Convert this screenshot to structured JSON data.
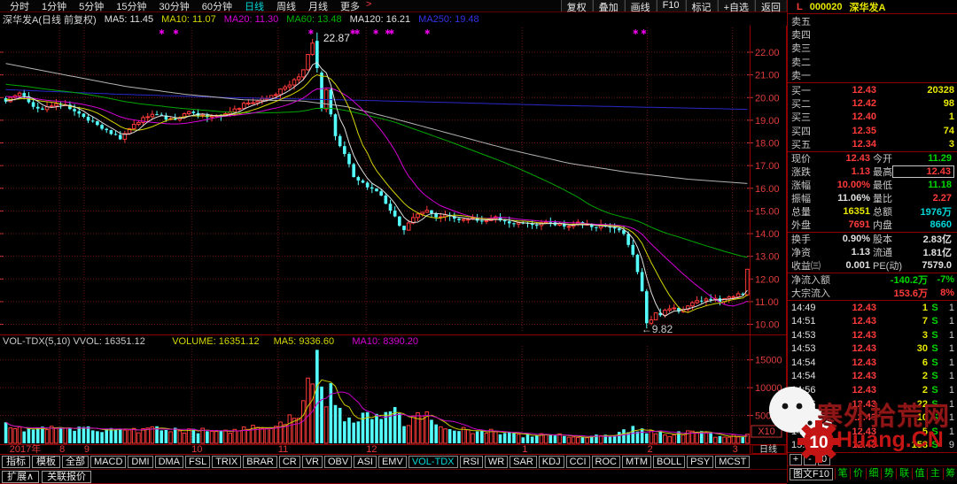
{
  "stock": {
    "flag": "L",
    "code": "000020",
    "name": "深华发A"
  },
  "topbar": {
    "periods": [
      {
        "label": "分时",
        "active": false
      },
      {
        "label": "1分钟",
        "active": false
      },
      {
        "label": "5分钟",
        "active": false
      },
      {
        "label": "15分钟",
        "active": false
      },
      {
        "label": "30分钟",
        "active": false
      },
      {
        "label": "60分钟",
        "active": false
      },
      {
        "label": "日线",
        "active": true
      },
      {
        "label": "周线",
        "active": false
      },
      {
        "label": "月线",
        "active": false
      },
      {
        "label": "更多",
        "active": false
      }
    ],
    "more_arrow": ">",
    "buttons": [
      "复权",
      "叠加",
      "画线",
      "F10",
      "标记",
      "+自选",
      "返回"
    ]
  },
  "title_line": {
    "name": "深华发A(日线 前复权)",
    "mas": [
      {
        "label": "MA5: 11.45",
        "color": "#e0e0e0"
      },
      {
        "label": "MA10: 11.07",
        "color": "#d6d600"
      },
      {
        "label": "MA20: 11.30",
        "color": "#d600d6"
      },
      {
        "label": "MA60: 13.48",
        "color": "#00b400"
      },
      {
        "label": "MA120: 16.21",
        "color": "#e0e0e0"
      },
      {
        "label": "MA250: 19.48",
        "color": "#3232e6"
      }
    ]
  },
  "chart": {
    "y_ticks": [
      "22.00",
      "21.00",
      "20.00",
      "19.00",
      "18.00",
      "17.00",
      "16.00",
      "15.00",
      "14.00",
      "13.00",
      "12.00",
      "11.00",
      "10.00"
    ],
    "vol_ticks": [
      "15000",
      "10000",
      "5000"
    ],
    "vol_scale": "X10",
    "period_box": "日线",
    "date_labels": [
      {
        "t": "2017年",
        "x": 0.008
      },
      {
        "t": "8",
        "x": 0.075
      },
      {
        "t": "9",
        "x": 0.108
      },
      {
        "t": "10",
        "x": 0.252
      },
      {
        "t": "11",
        "x": 0.368
      },
      {
        "t": "12",
        "x": 0.486
      },
      {
        "t": "1",
        "x": 0.695
      },
      {
        "t": "2",
        "x": 0.863
      },
      {
        "t": "3",
        "x": 0.977
      }
    ],
    "vol_header": [
      {
        "t": "VOL-TDX(5,10) VVOL: 16351.12",
        "c": "#c8c8c8"
      },
      {
        "t": "VOLUME: 16351.12",
        "c": "#d6d600"
      },
      {
        "t": "MA5: 9336.60",
        "c": "#d6d600"
      },
      {
        "t": "MA10: 8390.20",
        "c": "#d600d6"
      }
    ],
    "annotations": {
      "peak": "22.87",
      "low": "←9.82"
    }
  },
  "chart_data": {
    "type": "candlestick+volume",
    "title": "深华发A 000020 daily, 2017-07 to 2018-03",
    "ylim": [
      9.6,
      23.2
    ],
    "vol_axis_max": 17500,
    "vol_scale_note": "X10",
    "n_candles": 163,
    "key_points": {
      "high": 22.87,
      "low": 9.82,
      "last_close": 12.43,
      "last_open": 11.3,
      "last_volume": 1635,
      "high_xfrac": 0.419,
      "low_xfrac": 0.867
    },
    "price_anchors": [
      [
        0,
        19.9
      ],
      [
        0.02,
        20.2
      ],
      [
        0.045,
        19.4
      ],
      [
        0.07,
        19.8
      ],
      [
        0.1,
        19.3
      ],
      [
        0.13,
        18.6
      ],
      [
        0.155,
        18.2
      ],
      [
        0.175,
        18.9
      ],
      [
        0.2,
        19.25
      ],
      [
        0.225,
        19.0
      ],
      [
        0.25,
        19.35
      ],
      [
        0.28,
        19.1
      ],
      [
        0.3,
        19.4
      ],
      [
        0.33,
        19.8
      ],
      [
        0.36,
        20.1
      ],
      [
        0.385,
        20.6
      ],
      [
        0.4,
        21.1
      ],
      [
        0.412,
        22.3
      ],
      [
        0.419,
        22.3
      ],
      [
        0.428,
        21.0
      ],
      [
        0.437,
        19.4
      ],
      [
        0.447,
        18.0
      ],
      [
        0.458,
        17.4
      ],
      [
        0.468,
        16.6
      ],
      [
        0.478,
        16.3
      ],
      [
        0.49,
        16.0
      ],
      [
        0.505,
        15.7
      ],
      [
        0.518,
        15.1
      ],
      [
        0.534,
        14.1
      ],
      [
        0.548,
        14.6
      ],
      [
        0.563,
        15.05
      ],
      [
        0.578,
        14.75
      ],
      [
        0.595,
        14.9
      ],
      [
        0.61,
        14.55
      ],
      [
        0.625,
        14.7
      ],
      [
        0.64,
        14.5
      ],
      [
        0.655,
        14.75
      ],
      [
        0.67,
        14.6
      ],
      [
        0.69,
        14.45
      ],
      [
        0.71,
        14.35
      ],
      [
        0.73,
        14.5
      ],
      [
        0.75,
        14.35
      ],
      [
        0.77,
        14.45
      ],
      [
        0.79,
        14.3
      ],
      [
        0.81,
        14.35
      ],
      [
        0.83,
        14.15
      ],
      [
        0.842,
        13.4
      ],
      [
        0.852,
        12.3
      ],
      [
        0.86,
        11.1
      ],
      [
        0.867,
        10.0
      ],
      [
        0.874,
        10.55
      ],
      [
        0.882,
        10.35
      ],
      [
        0.89,
        10.6
      ],
      [
        0.9,
        10.75
      ],
      [
        0.912,
        10.55
      ],
      [
        0.925,
        10.9
      ],
      [
        0.938,
        11.05
      ],
      [
        0.95,
        11.15
      ],
      [
        0.962,
        11.05
      ],
      [
        0.974,
        11.25
      ],
      [
        0.985,
        11.3
      ],
      [
        0.994,
        11.3
      ],
      [
        1,
        12.43
      ]
    ],
    "vol_anchors": [
      [
        0,
        3200
      ],
      [
        0.05,
        2400
      ],
      [
        0.09,
        2900
      ],
      [
        0.13,
        2300
      ],
      [
        0.17,
        2100
      ],
      [
        0.21,
        2500
      ],
      [
        0.25,
        2300
      ],
      [
        0.29,
        2100
      ],
      [
        0.33,
        2500
      ],
      [
        0.37,
        3200
      ],
      [
        0.4,
        5200
      ],
      [
        0.417,
        16800
      ],
      [
        0.428,
        8200
      ],
      [
        0.44,
        9600
      ],
      [
        0.452,
        5200
      ],
      [
        0.465,
        4000
      ],
      [
        0.478,
        4600
      ],
      [
        0.49,
        5800
      ],
      [
        0.502,
        4200
      ],
      [
        0.515,
        6600
      ],
      [
        0.528,
        5000
      ],
      [
        0.545,
        3600
      ],
      [
        0.562,
        5400
      ],
      [
        0.578,
        3300
      ],
      [
        0.595,
        2700
      ],
      [
        0.615,
        2300
      ],
      [
        0.635,
        2000
      ],
      [
        0.655,
        2300
      ],
      [
        0.675,
        1700
      ],
      [
        0.7,
        1400
      ],
      [
        0.725,
        1800
      ],
      [
        0.75,
        1300
      ],
      [
        0.775,
        1200
      ],
      [
        0.8,
        1400
      ],
      [
        0.825,
        1600
      ],
      [
        0.845,
        2700
      ],
      [
        0.862,
        2400
      ],
      [
        0.878,
        1900
      ],
      [
        0.895,
        1500
      ],
      [
        0.915,
        1900
      ],
      [
        0.935,
        2300
      ],
      [
        0.955,
        1500
      ],
      [
        0.975,
        1300
      ],
      [
        0.99,
        1100
      ],
      [
        1,
        1635
      ]
    ],
    "ma120_path": [
      [
        0,
        21.5
      ],
      [
        0.08,
        21.0
      ],
      [
        0.16,
        20.5
      ],
      [
        0.24,
        20.15
      ],
      [
        0.32,
        19.9
      ],
      [
        0.4,
        19.85
      ],
      [
        0.46,
        19.6
      ],
      [
        0.52,
        19.1
      ],
      [
        0.6,
        18.4
      ],
      [
        0.68,
        17.7
      ],
      [
        0.76,
        17.1
      ],
      [
        0.84,
        16.7
      ],
      [
        0.92,
        16.4
      ],
      [
        1,
        16.21
      ]
    ],
    "ma250_path": [
      [
        0,
        20.35
      ],
      [
        0.15,
        20.15
      ],
      [
        0.3,
        20.0
      ],
      [
        0.45,
        19.9
      ],
      [
        0.6,
        19.78
      ],
      [
        0.75,
        19.65
      ],
      [
        0.9,
        19.55
      ],
      [
        1,
        19.48
      ]
    ],
    "star_marks_x": [
      0.212,
      0.231,
      0.412,
      0.468,
      0.474,
      0.499,
      0.515,
      0.52,
      0.568,
      0.847,
      0.858
    ],
    "colors": {
      "up": "#ff3a3a",
      "down": "#54ffff",
      "ma5": "#e0e0e0",
      "ma10": "#d6d600",
      "ma20": "#d600d6",
      "ma60": "#00a800",
      "ma120": "#b4b4b4",
      "ma250": "#2828c8",
      "grid": "#6e1414",
      "axis_text": "#e03c3c"
    }
  },
  "order_book": {
    "sells": [
      {
        "label": "卖五",
        "price": "",
        "vol": ""
      },
      {
        "label": "卖四",
        "price": "",
        "vol": ""
      },
      {
        "label": "卖三",
        "price": "",
        "vol": ""
      },
      {
        "label": "卖二",
        "price": "",
        "vol": ""
      },
      {
        "label": "卖一",
        "price": "",
        "vol": ""
      }
    ],
    "buys": [
      {
        "label": "买一",
        "price": "12.43",
        "vol": "20328"
      },
      {
        "label": "买二",
        "price": "12.42",
        "vol": "98"
      },
      {
        "label": "买三",
        "price": "12.40",
        "vol": "1"
      },
      {
        "label": "买四",
        "price": "12.35",
        "vol": "74"
      },
      {
        "label": "买五",
        "price": "12.34",
        "vol": "3"
      }
    ]
  },
  "stats_rows": [
    {
      "div": false,
      "cells": [
        {
          "l": "现价",
          "v": "12.43",
          "c": "c-r",
          "box": false
        },
        {
          "l": "今开",
          "v": "11.29",
          "c": "c-g",
          "box": false
        }
      ]
    },
    {
      "div": false,
      "cells": [
        {
          "l": "涨跌",
          "v": "1.13",
          "c": "c-r",
          "box": false
        },
        {
          "l": "最高",
          "v": "12.43",
          "c": "c-r",
          "box": true
        }
      ]
    },
    {
      "div": false,
      "cells": [
        {
          "l": "涨幅",
          "v": "10.00%",
          "c": "c-r",
          "box": false
        },
        {
          "l": "最低",
          "v": "11.18",
          "c": "c-g",
          "box": false
        }
      ]
    },
    {
      "div": false,
      "cells": [
        {
          "l": "振幅",
          "v": "11.06%",
          "c": "c-w",
          "box": false
        },
        {
          "l": "量比",
          "v": "2.27",
          "c": "c-r",
          "box": false
        }
      ]
    },
    {
      "div": false,
      "cells": [
        {
          "l": "总量",
          "v": "16351",
          "c": "c-y",
          "box": false
        },
        {
          "l": "总额",
          "v": "1976万",
          "c": "c-c",
          "box": false
        }
      ]
    },
    {
      "div": false,
      "cells": [
        {
          "l": "外盘",
          "v": "7691",
          "c": "c-r",
          "box": false
        },
        {
          "l": "内盘",
          "v": "8660",
          "c": "c-c",
          "box": false
        }
      ]
    },
    {
      "div": true,
      "cells": [
        {
          "l": "换手",
          "v": "0.90%",
          "c": "c-w",
          "box": false
        },
        {
          "l": "股本",
          "v": "2.83亿",
          "c": "c-w",
          "box": false
        }
      ]
    },
    {
      "div": false,
      "cells": [
        {
          "l": "净资",
          "v": "1.13",
          "c": "c-w",
          "box": false
        },
        {
          "l": "流通",
          "v": "1.81亿",
          "c": "c-w",
          "box": false
        }
      ]
    },
    {
      "div": false,
      "cells": [
        {
          "l": "收益㈢",
          "v": "0.001",
          "c": "c-w",
          "box": false
        },
        {
          "l": "PE(动)",
          "v": "7579.0",
          "c": "c-w",
          "box": false
        }
      ]
    }
  ],
  "flows": [
    {
      "label": "净流入额",
      "value": "-140.2万",
      "pct": "-7%",
      "c": "c-g"
    },
    {
      "label": "大宗流入",
      "value": "153.6万",
      "pct": "8%",
      "c": "c-r"
    }
  ],
  "tick_list": [
    {
      "time": "14:49",
      "price": "12.43",
      "vol": "1",
      "type": "S",
      "n": "1"
    },
    {
      "time": "14:51",
      "price": "12.43",
      "vol": "7",
      "type": "S",
      "n": "1"
    },
    {
      "time": "14:53",
      "price": "12.43",
      "vol": "3",
      "type": "S",
      "n": "1"
    },
    {
      "time": "14:53",
      "price": "12.43",
      "vol": "30",
      "type": "S",
      "n": "1"
    },
    {
      "time": "14:54",
      "price": "12.43",
      "vol": "6",
      "type": "S",
      "n": "1"
    },
    {
      "time": "14:54",
      "price": "12.43",
      "vol": "2",
      "type": "S",
      "n": "1"
    },
    {
      "time": "14:56",
      "price": "12.43",
      "vol": "2",
      "type": "S",
      "n": "1"
    },
    {
      "time": "14:56",
      "price": "12.43",
      "vol": "22",
      "type": "S",
      "n": "1"
    },
    {
      "time": "14:56",
      "price": "12.43",
      "vol": "10",
      "type": "S",
      "n": "1"
    },
    {
      "time": "14:57",
      "price": "12.43",
      "vol": "5",
      "type": "S",
      "n": "1"
    },
    {
      "time": "15:00",
      "price": "12.43",
      "vol": "158",
      "type": "S",
      "n": "9"
    }
  ],
  "bottom": {
    "indicator_tabs": [
      "指标",
      "模板"
    ],
    "indicators": [
      "全部",
      "MACD",
      "DMI",
      "DMA",
      "FSL",
      "TRIX",
      "BRAR",
      "CR",
      "VR",
      "OBV",
      "ASI",
      "EMV",
      "VOL-TDX",
      "RSI",
      "WR",
      "SAR",
      "KDJ",
      "CCI",
      "ROC",
      "MTM",
      "BOLL",
      "PSY",
      "MCST"
    ],
    "active_indicator": "VOL-TDX",
    "expand": "扩展∧",
    "linked_quote": "关联报价",
    "zoom_controls": [
      "+",
      "-",
      "0"
    ],
    "f10": "图文F10",
    "mini_tabs": [
      "笔",
      "价",
      "细",
      "势",
      "联",
      "值",
      "主",
      "筹"
    ]
  },
  "watermark": {
    "site_name": "寒外拾荒网",
    "logo_number": "10",
    "domain": "Huang.CN"
  }
}
